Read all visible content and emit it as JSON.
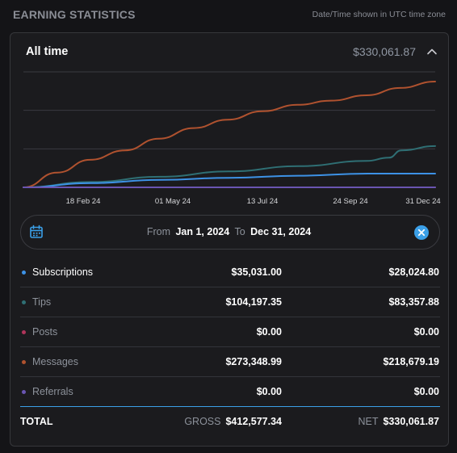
{
  "header": {
    "title": "EARNING STATISTICS",
    "note": "Date/Time shown in UTC time zone"
  },
  "summary": {
    "period": "All time",
    "total": "$330,061.87"
  },
  "colors": {
    "subscriptions": "#3d92e6",
    "tips": "#2f6f74",
    "posts": "#b0345a",
    "messages": "#b0522f",
    "referrals": "#6a55b2",
    "accent": "#3ba0e8"
  },
  "chart_data": {
    "type": "line",
    "x_ticks": [
      "18 Feb 24",
      "01 May 24",
      "13 Jul 24",
      "24 Sep 24",
      "31 Dec 24"
    ],
    "x_range": [
      "2024-01-01",
      "2024-12-31"
    ],
    "grid": true,
    "series": [
      {
        "name": "Messages",
        "color": "#b0522f",
        "points": [
          [
            "2024-01-01",
            0.0
          ],
          [
            "2024-01-31",
            0.14
          ],
          [
            "2024-02-29",
            0.26
          ],
          [
            "2024-03-31",
            0.35
          ],
          [
            "2024-04-30",
            0.46
          ],
          [
            "2024-05-31",
            0.56
          ],
          [
            "2024-06-30",
            0.64
          ],
          [
            "2024-07-31",
            0.72
          ],
          [
            "2024-08-31",
            0.78
          ],
          [
            "2024-09-30",
            0.82
          ],
          [
            "2024-10-31",
            0.87
          ],
          [
            "2024-11-30",
            0.94
          ],
          [
            "2024-12-31",
            1.0
          ]
        ]
      },
      {
        "name": "Tips",
        "color": "#2f6f74",
        "points": [
          [
            "2024-01-01",
            0.0
          ],
          [
            "2024-03-01",
            0.05
          ],
          [
            "2024-05-01",
            0.1
          ],
          [
            "2024-07-01",
            0.15
          ],
          [
            "2024-09-01",
            0.2
          ],
          [
            "2024-10-31",
            0.25
          ],
          [
            "2024-11-20",
            0.28
          ],
          [
            "2024-12-01",
            0.35
          ],
          [
            "2024-12-31",
            0.39
          ]
        ]
      },
      {
        "name": "Subscriptions",
        "color": "#3d92e6",
        "points": [
          [
            "2024-01-01",
            0.0
          ],
          [
            "2024-03-01",
            0.04
          ],
          [
            "2024-05-01",
            0.07
          ],
          [
            "2024-07-01",
            0.09
          ],
          [
            "2024-09-01",
            0.11
          ],
          [
            "2024-11-01",
            0.13
          ],
          [
            "2024-12-31",
            0.13
          ]
        ]
      },
      {
        "name": "Posts",
        "color": "#b0345a",
        "points": [
          [
            "2024-01-01",
            0.0
          ],
          [
            "2024-12-31",
            0.0
          ]
        ]
      },
      {
        "name": "Referrals",
        "color": "#6a55b2",
        "points": [
          [
            "2024-01-01",
            0.0
          ],
          [
            "2024-12-31",
            0.0
          ]
        ]
      }
    ]
  },
  "date_range": {
    "from_label": "From",
    "from_value": "Jan 1, 2024",
    "to_label": "To",
    "to_value": "Dec 31, 2024"
  },
  "rows": [
    {
      "name": "Subscriptions",
      "gross": "$35,031.00",
      "net": "$28,024.80",
      "color": "#3d92e6"
    },
    {
      "name": "Tips",
      "gross": "$104,197.35",
      "net": "$83,357.88",
      "color": "#2f6f74"
    },
    {
      "name": "Posts",
      "gross": "$0.00",
      "net": "$0.00",
      "color": "#b0345a"
    },
    {
      "name": "Messages",
      "gross": "$273,348.99",
      "net": "$218,679.19",
      "color": "#b0522f"
    },
    {
      "name": "Referrals",
      "gross": "$0.00",
      "net": "$0.00",
      "color": "#6a55b2"
    }
  ],
  "totals": {
    "label": "TOTAL",
    "gross_label": "GROSS",
    "gross_value": "$412,577.34",
    "net_label": "NET",
    "net_value": "$330,061.87"
  }
}
